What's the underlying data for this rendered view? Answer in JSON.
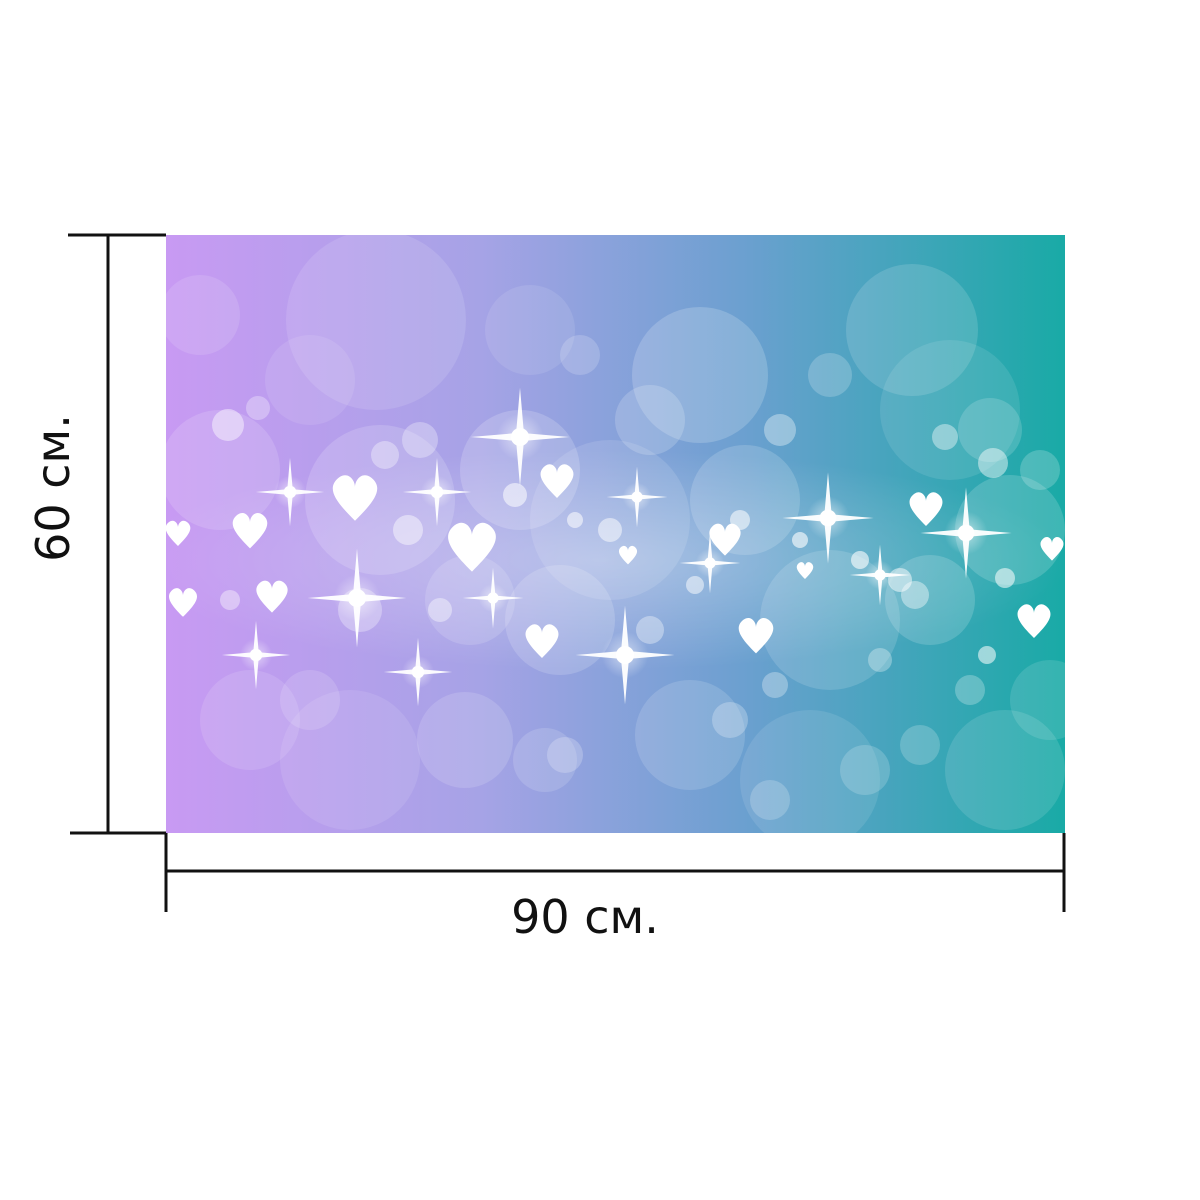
{
  "product": {
    "width_label": "90 см.",
    "height_label": "60 см."
  },
  "artwork": {
    "description_icon": "bokeh-hearts-sparkles",
    "gradient_colors": [
      "#c89af3",
      "#9aa3e0",
      "#5fa2cb",
      "#19aaa6"
    ]
  },
  "colors": {
    "dimension_line": "#111111",
    "background": "#ffffff"
  }
}
